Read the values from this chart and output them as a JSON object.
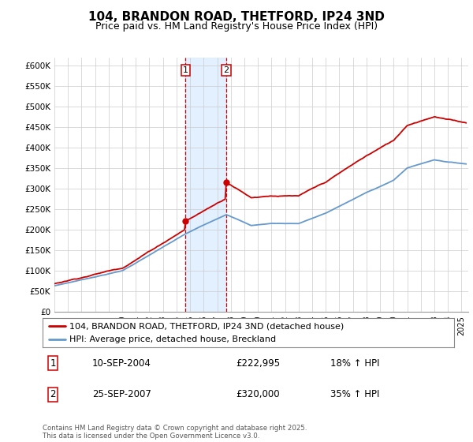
{
  "title": "104, BRANDON ROAD, THETFORD, IP24 3ND",
  "subtitle": "Price paid vs. HM Land Registry's House Price Index (HPI)",
  "ytick_vals": [
    0,
    50000,
    100000,
    150000,
    200000,
    250000,
    300000,
    350000,
    400000,
    450000,
    500000,
    550000,
    600000
  ],
  "ytick_labels": [
    "£0",
    "£50K",
    "£100K",
    "£150K",
    "£200K",
    "£250K",
    "£300K",
    "£350K",
    "£400K",
    "£450K",
    "£500K",
    "£550K",
    "£600K"
  ],
  "ylim": [
    0,
    620000
  ],
  "legend_line1": "104, BRANDON ROAD, THETFORD, IP24 3ND (detached house)",
  "legend_line2": "HPI: Average price, detached house, Breckland",
  "ann1_label": "1",
  "ann1_date": "10-SEP-2004",
  "ann1_price": "£222,995",
  "ann1_hpi": "18% ↑ HPI",
  "ann2_label": "2",
  "ann2_date": "25-SEP-2007",
  "ann2_price": "£320,000",
  "ann2_hpi": "35% ↑ HPI",
  "footer": "Contains HM Land Registry data © Crown copyright and database right 2025.\nThis data is licensed under the Open Government Licence v3.0.",
  "red_color": "#cc0000",
  "blue_color": "#6699cc",
  "shade_color": "#ddeeff",
  "bg_color": "#f0f4f8"
}
